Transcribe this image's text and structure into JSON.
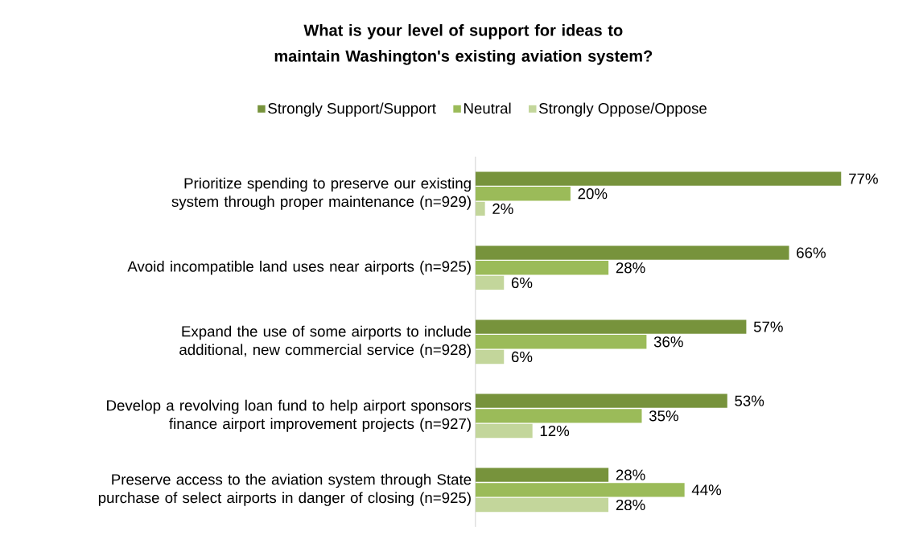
{
  "chart_data": {
    "type": "bar",
    "orientation": "horizontal",
    "title": "What is your level of support for ideas to maintain Washington's existing aviation system?",
    "categories": [
      "Prioritize spending to preserve our existing system through proper maintenance (n=929)",
      "Avoid incompatible land uses near airports (n=925)",
      "Expand the use of some airports to include additional, new commercial service (n=928)",
      "Develop a revolving loan fund to help airport sponsors finance airport improvement projects (n=927)",
      "Preserve access to the aviation system through State purchase of select airports in danger of closing (n=925)"
    ],
    "series": [
      {
        "name": "Strongly Support/Support",
        "color": "#77933c",
        "values": [
          77,
          66,
          57,
          53,
          28
        ],
        "value_labels": [
          "77%",
          "66%",
          "57%",
          "53%",
          "28%"
        ]
      },
      {
        "name": "Neutral",
        "color": "#9bbb59",
        "values": [
          20,
          28,
          36,
          35,
          44
        ],
        "value_labels": [
          "20%",
          "28%",
          "36%",
          "35%",
          "44%"
        ]
      },
      {
        "name": "Strongly Oppose/Oppose",
        "color": "#c3d69b",
        "values": [
          2,
          6,
          6,
          12,
          28
        ],
        "value_labels": [
          "2%",
          "6%",
          "6%",
          "12%",
          "28%"
        ]
      }
    ],
    "legend": "top"
  }
}
